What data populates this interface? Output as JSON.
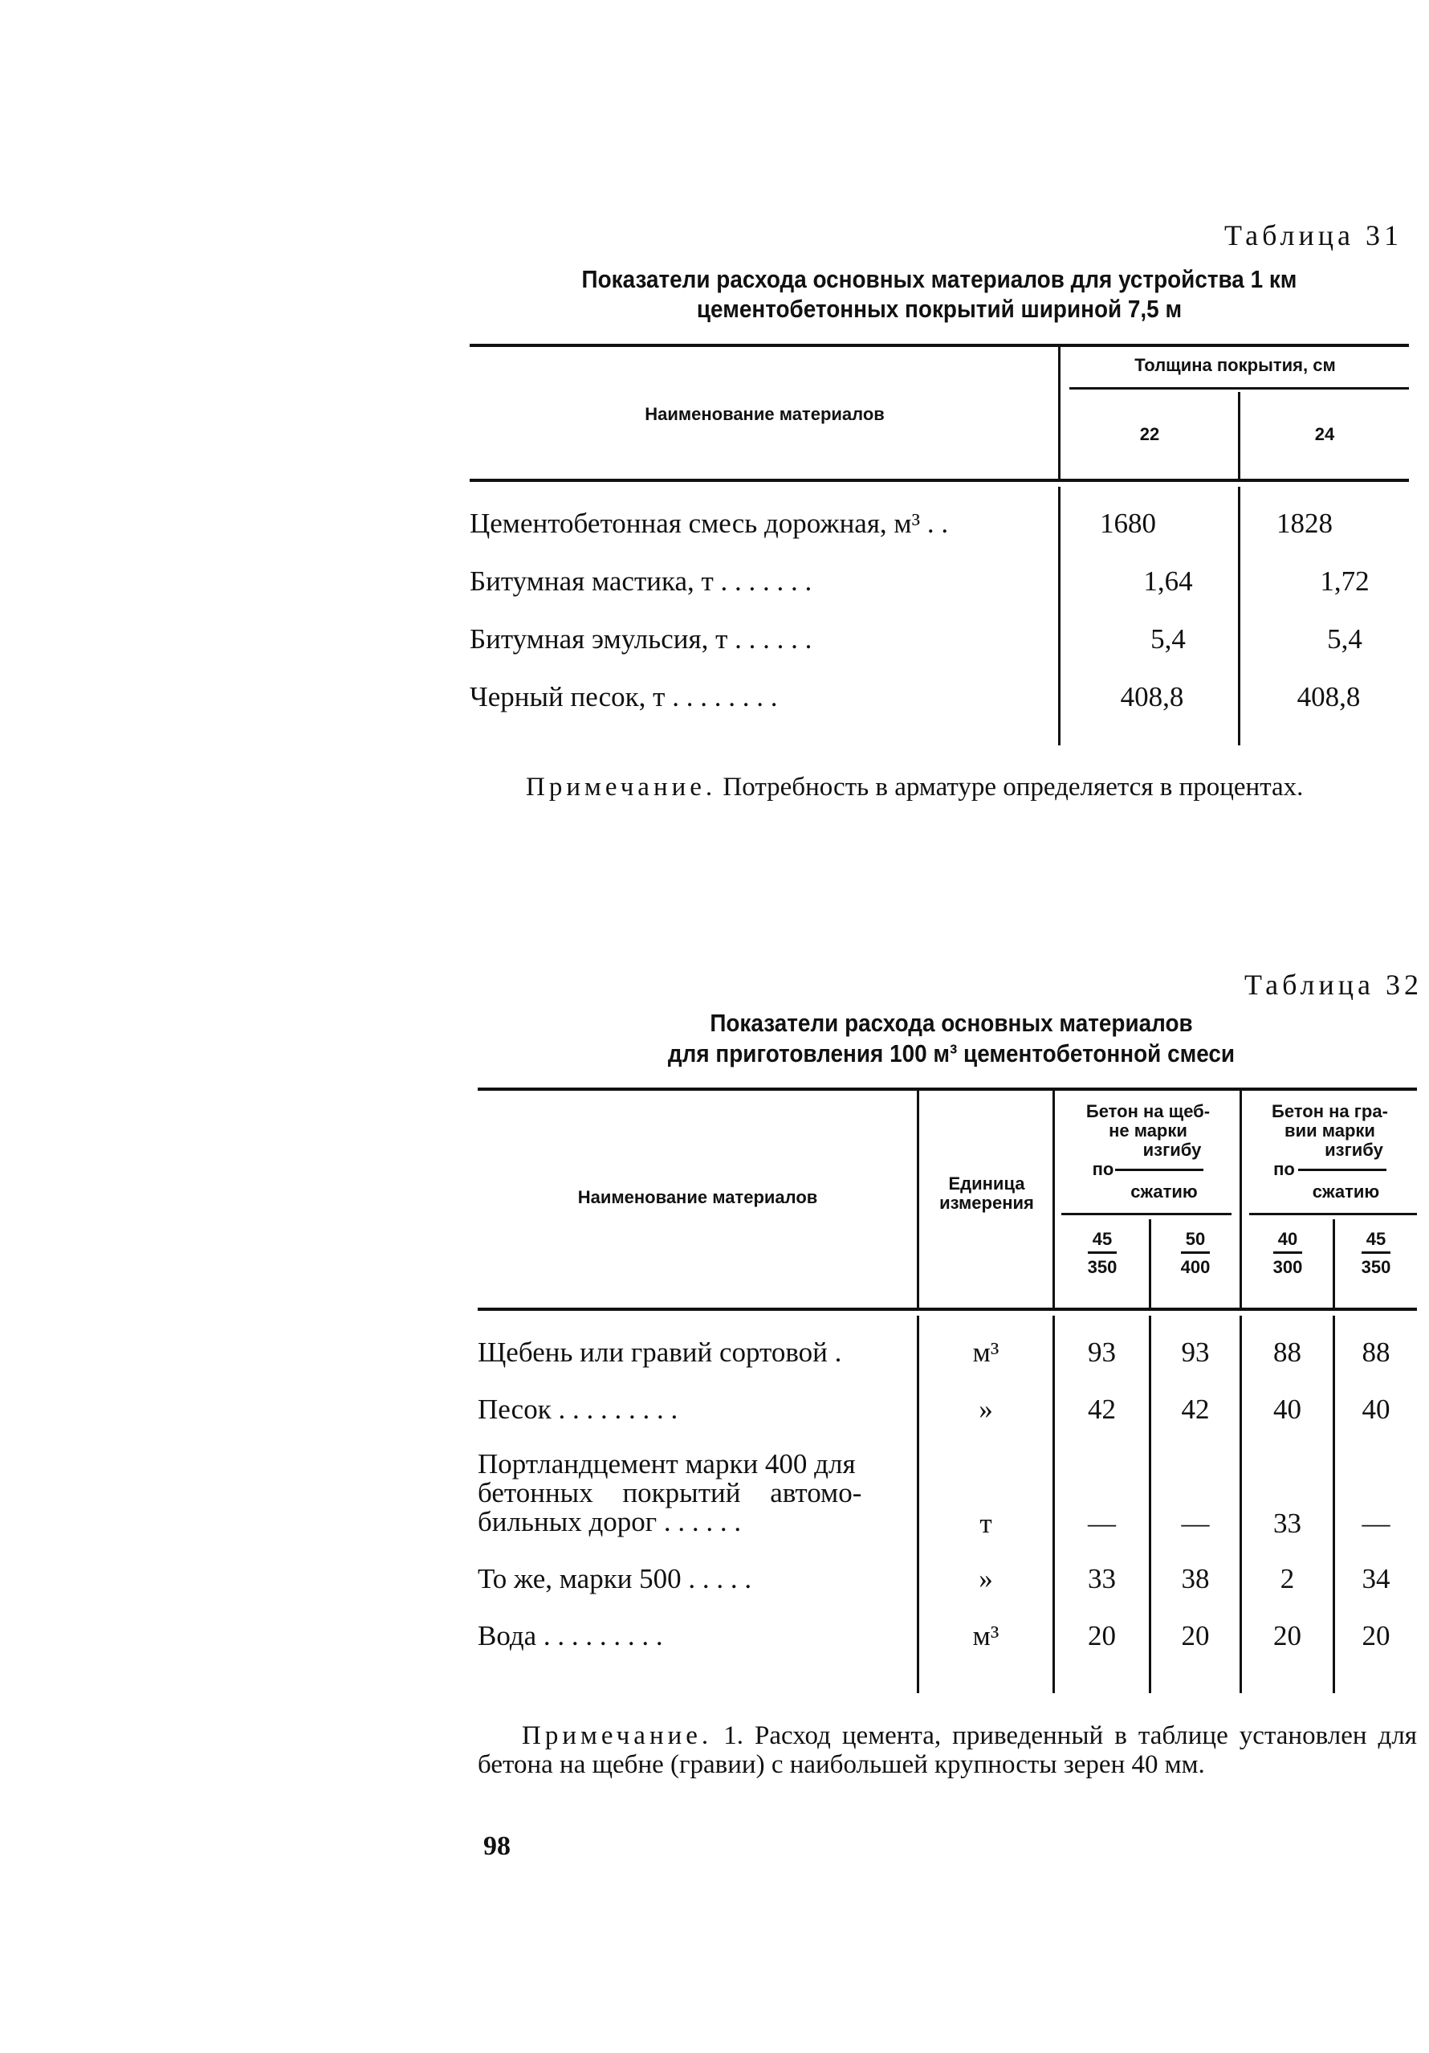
{
  "table31": {
    "caption": "Таблица 31",
    "title_line1": "Показатели расхода основных материалов для устройства 1 км",
    "title_line2": "цементобетонных покрытий шириной 7,5 м",
    "col_name": "Наименование материалов",
    "col_group": "Толщина покрытия, см",
    "cols": [
      "22",
      "24"
    ],
    "rows": [
      {
        "name": "Цементобетонная смесь дорожная, м³ . .",
        "v": [
          "1680",
          "1828"
        ]
      },
      {
        "name": "Битумная мастика, т . . . . . . .",
        "v": [
          "1,64",
          "1,72"
        ]
      },
      {
        "name": "Битумная эмульсия, т . . . . . .",
        "v": [
          "5,4",
          "5,4"
        ]
      },
      {
        "name": "Черный песок, т . . . . . . . .",
        "v": [
          "408,8",
          "408,8"
        ]
      }
    ],
    "note_label": "Примечание.",
    "note_text": " Потребность в арматуре определяется в процентах."
  },
  "table32": {
    "caption": "Таблица 32",
    "title_line1": "Показатели расхода основных материалов",
    "title_line2": "для приготовления 100 м³ цементобетонной смеси",
    "col_name": "Наименование материалов",
    "col_unit_1": "Единица",
    "col_unit_2": "измерения",
    "group1": {
      "l1": "Бетон на щеб-",
      "l2": "не марки",
      "top": "изгибу",
      "po": "по",
      "bottom": "сжатию"
    },
    "group2": {
      "l1": "Бетон на гра-",
      "l2": "вии марки",
      "top": "изгибу",
      "po": "по",
      "bottom": "сжатию"
    },
    "cols": [
      {
        "t": "45",
        "b": "350"
      },
      {
        "t": "50",
        "b": "400"
      },
      {
        "t": "40",
        "b": "300"
      },
      {
        "t": "45",
        "b": "350"
      }
    ],
    "rows": [
      {
        "name": "Щебень или гравий сортовой .",
        "unit": "м³",
        "v": [
          "93",
          "93",
          "88",
          "88"
        ]
      },
      {
        "name": "Песок . . . . . . . . .",
        "unit": "»",
        "v": [
          "42",
          "42",
          "40",
          "40"
        ]
      },
      {
        "name1": "Портландцемент марки 400 для",
        "name2": "бетонных покрытий автомо-",
        "name3": "бильных дорог . . . . . .",
        "unit": "т",
        "v": [
          "—",
          "—",
          "33",
          "—"
        ]
      },
      {
        "name": "То же, марки 500 . . . . .",
        "unit": "»",
        "v": [
          "33",
          "38",
          "2",
          "34"
        ]
      },
      {
        "name": "Вода . . . . . . . . .",
        "unit": "м³",
        "v": [
          "20",
          "20",
          "20",
          "20"
        ]
      }
    ],
    "note_label": "Примечание.",
    "note_text": " 1. Расход цемента, приведенный в таблице установлен для бетона на щебне (гравии) с наибольшей крупносты зерен 40 мм."
  },
  "page_number": "98"
}
